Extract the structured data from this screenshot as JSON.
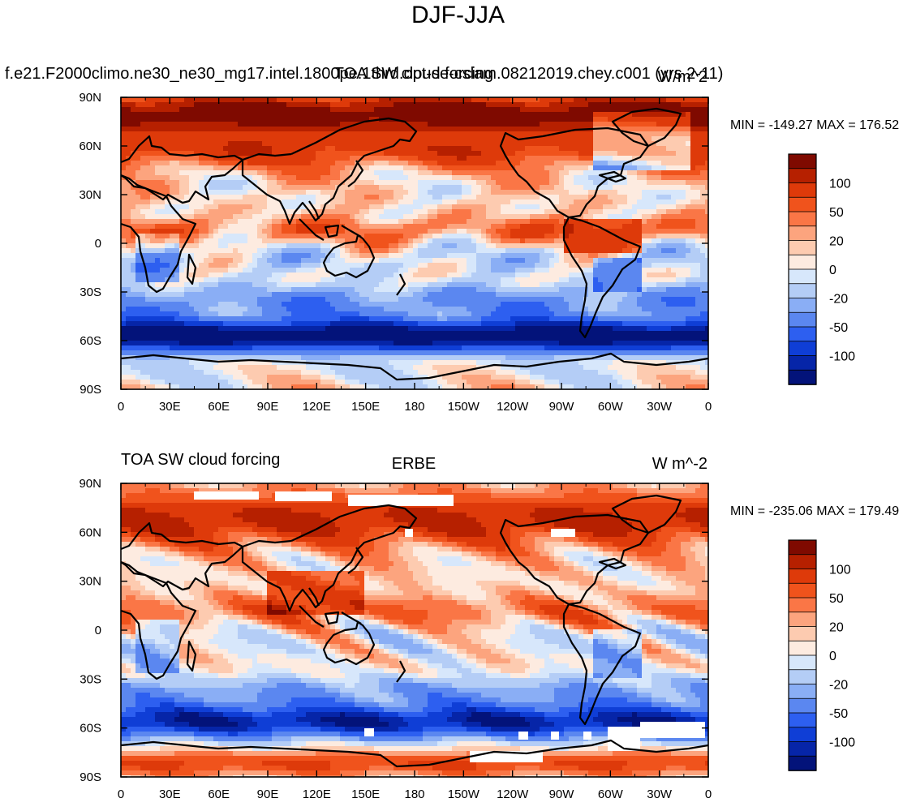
{
  "title": "DJF-JJA",
  "panels": [
    {
      "left_label": "f.e21.F2000climo.ne30_ne30_mg17.intel.1800pe.1thrd.opt-se-cslam.08212019.chey.c001 (yrs 2-11)",
      "center_label": "TOA SW cloud forcing",
      "right_label": "W/m^2",
      "minmax": "MIN = -149.27  MAX = 176.52",
      "data_gaps": false
    },
    {
      "left_label": "TOA SW cloud forcing",
      "center_label": "ERBE",
      "right_label": "W m^-2",
      "minmax": "MIN = -235.06  MAX = 179.49",
      "data_gaps": true
    }
  ],
  "map": {
    "lon_ticks": [
      "0",
      "30E",
      "60E",
      "90E",
      "120E",
      "150E",
      "180",
      "150W",
      "120W",
      "90W",
      "60W",
      "30W",
      "0"
    ],
    "lat_ticks": [
      "90N",
      "60N",
      "30N",
      "0",
      "30S",
      "60S",
      "90S"
    ]
  },
  "colorbar": {
    "labels": [
      "100",
      "50",
      "20",
      "0",
      "-20",
      "-50",
      "-100"
    ],
    "colors": [
      "#7f0a00",
      "#b62000",
      "#de3a0a",
      "#f0531c",
      "#fa7646",
      "#fca47e",
      "#fdcbb0",
      "#fdebe0",
      "#d7e7fb",
      "#b4cdf6",
      "#8aaef5",
      "#5b87f0",
      "#2d5ff0",
      "#0f3ed6",
      "#0625a8",
      "#03137a"
    ]
  },
  "colors": {
    "land_outline": "#000000",
    "missing": "#ffffff"
  }
}
